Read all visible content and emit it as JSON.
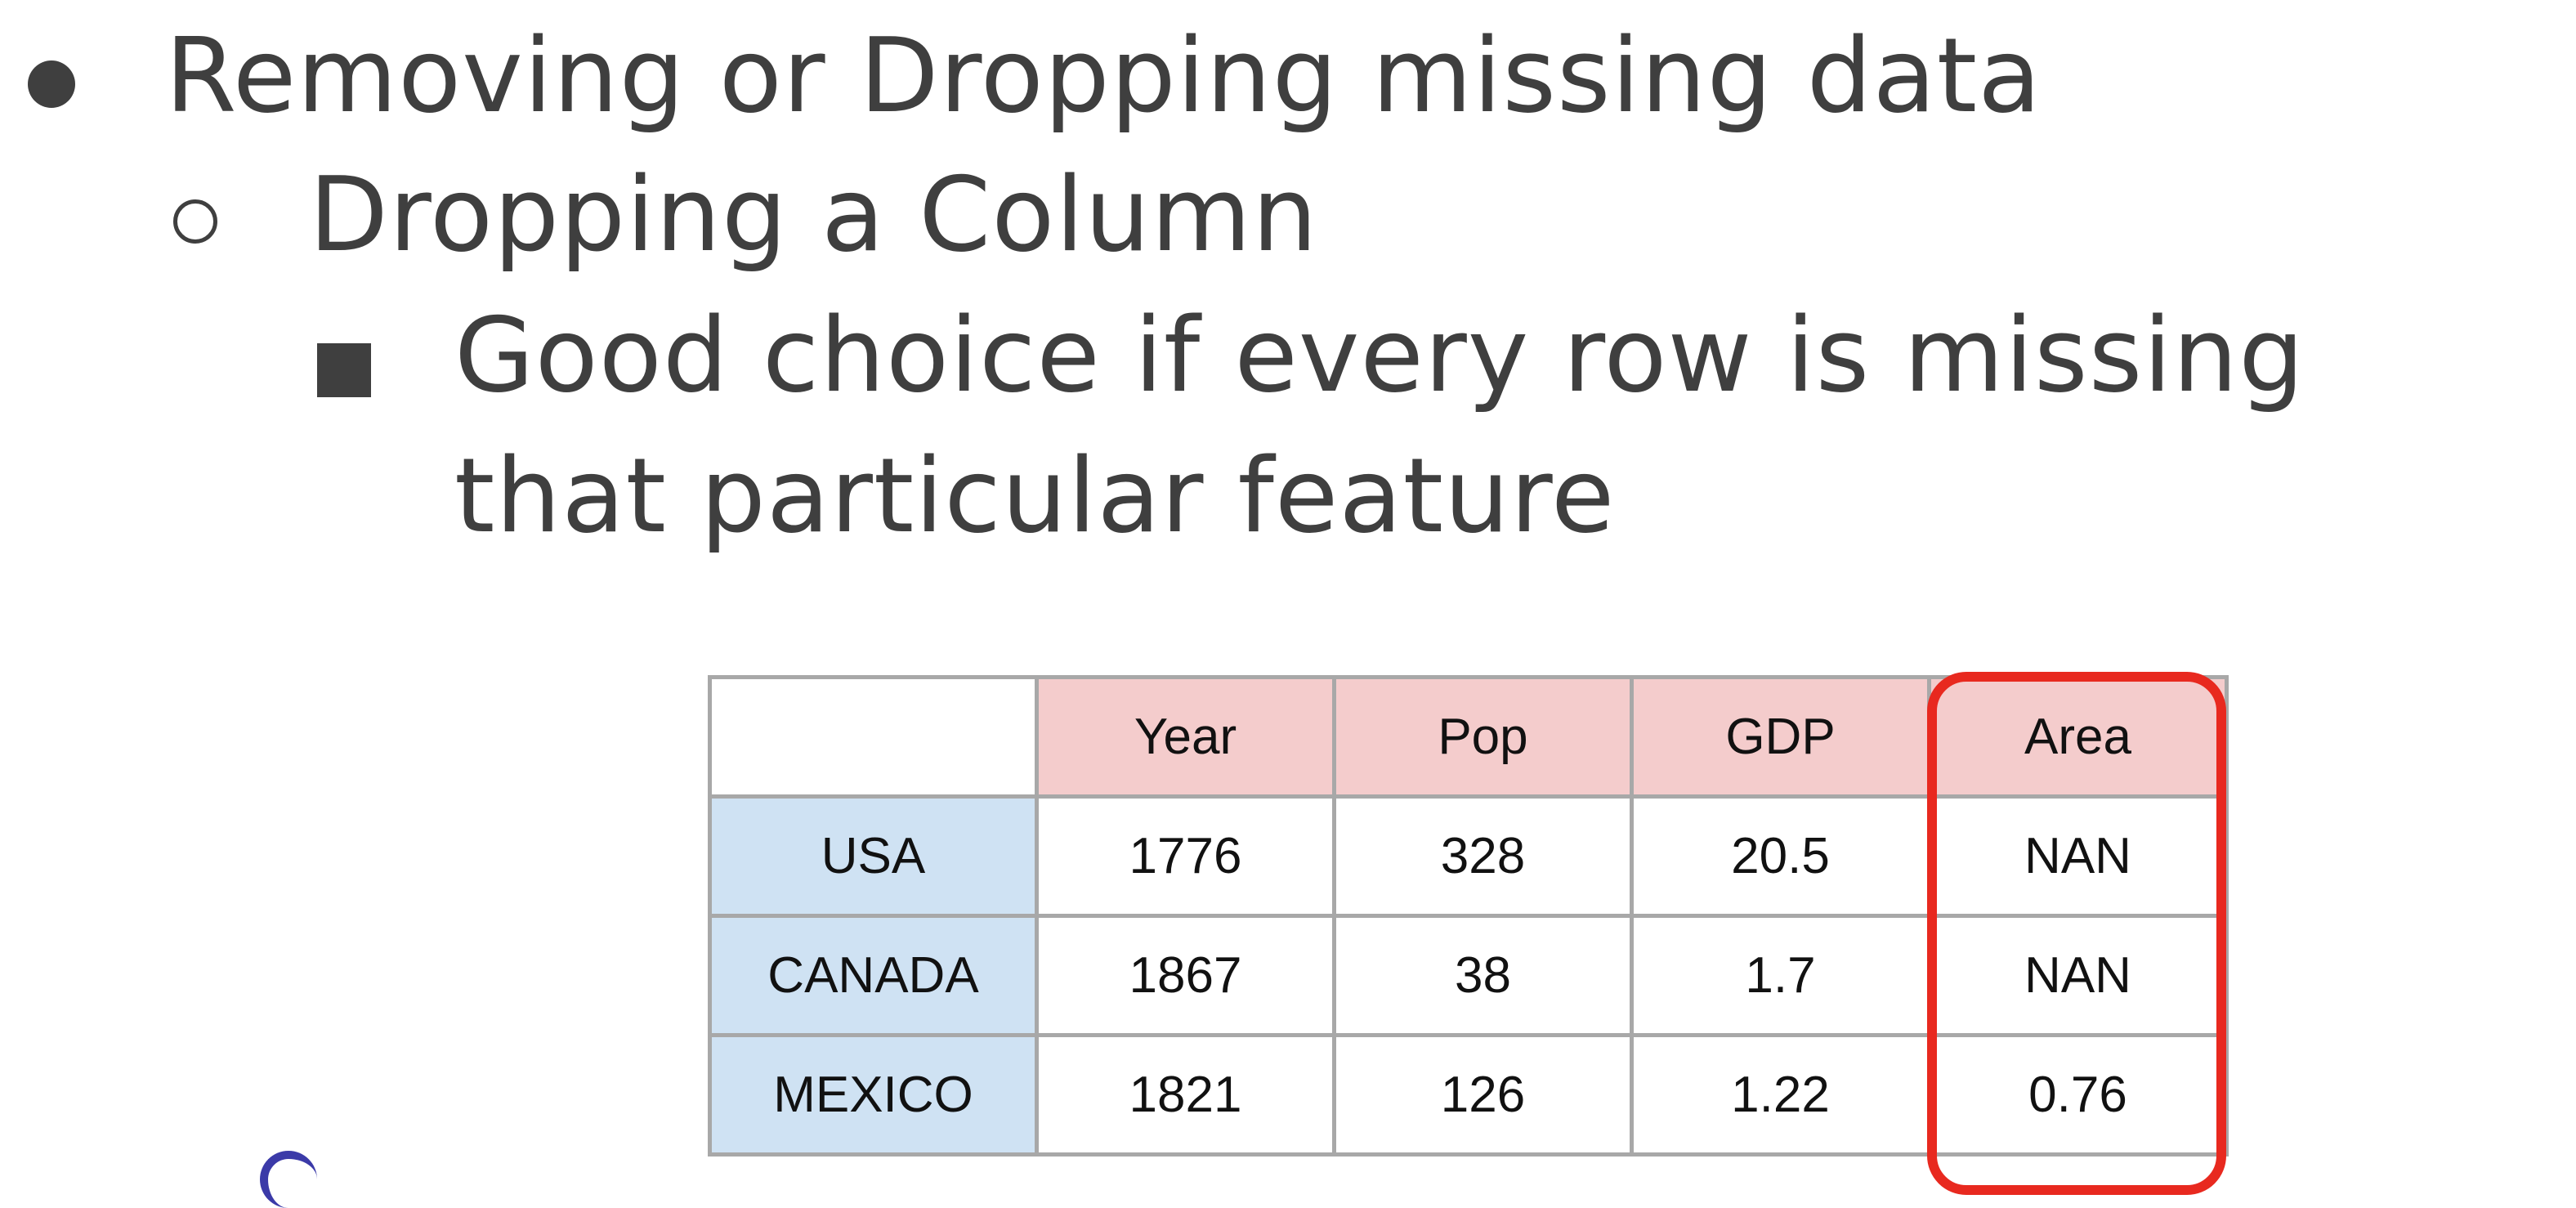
{
  "bullets": {
    "level1": "Removing or Dropping missing data",
    "level2": "Dropping a Column",
    "level3_line1": "Good choice if every row is missing",
    "level3_line2": "that particular feature"
  },
  "table": {
    "headers": [
      "Year",
      "Pop",
      "GDP",
      "Area"
    ],
    "rows": [
      {
        "label": "USA",
        "values": [
          "1776",
          "328",
          "20.5",
          "NAN"
        ]
      },
      {
        "label": "CANADA",
        "values": [
          "1867",
          "38",
          "1.7",
          "NAN"
        ]
      },
      {
        "label": "MEXICO",
        "values": [
          "1821",
          "126",
          "1.22",
          "0.76"
        ]
      }
    ]
  },
  "colors": {
    "text": "#3f3f3f",
    "header_bg": "#f4cccc",
    "row_label_bg": "#cfe2f3",
    "highlight": "#e8291f"
  }
}
